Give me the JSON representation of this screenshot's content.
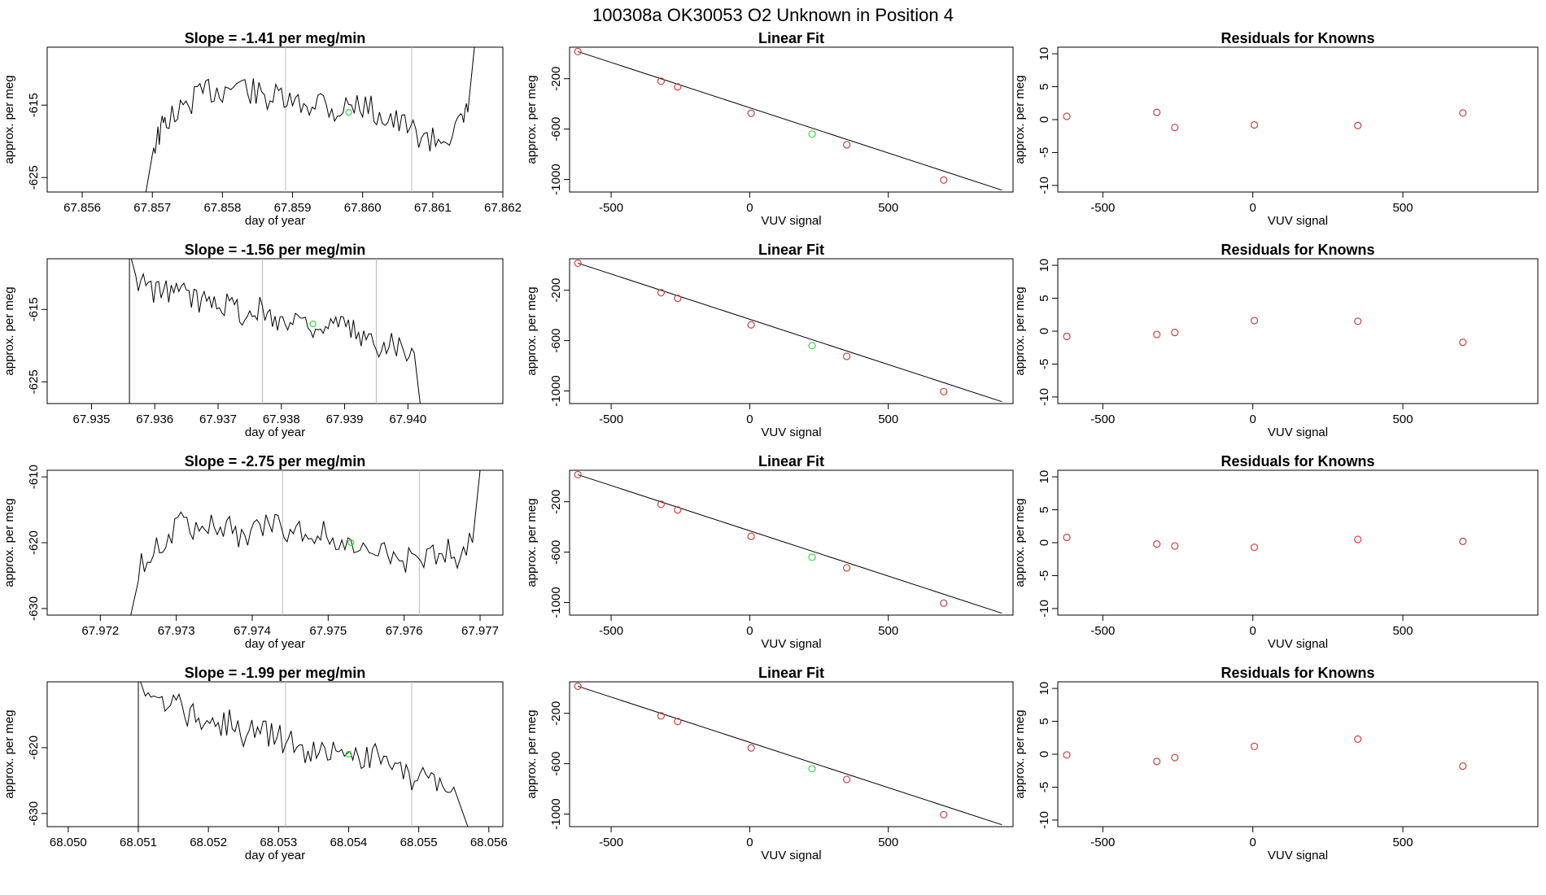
{
  "figure": {
    "main_title": "100308a      OK30053    O2 Unknown in Position  4",
    "axis_color": "#000000",
    "known_color": "#cd4040",
    "unknown_color": "#33dd33",
    "vline_color": "#bbbbbb"
  },
  "chart_data": [
    {
      "type": "line",
      "title": "Slope =  -1.41  per meg/min",
      "xlabel": "day of year",
      "ylabel": "approx. per meg",
      "xlim": [
        67.8555,
        67.862
      ],
      "ylim": [
        -627,
        -607
      ],
      "x_ticks": [
        67.856,
        67.857,
        67.858,
        67.859,
        67.86,
        67.861,
        67.862
      ],
      "x_tick_labels": [
        "67.856",
        "67.857",
        "67.858",
        "67.859",
        "67.860",
        "67.861",
        "67.862"
      ],
      "y_ticks": [
        -615,
        -625
      ],
      "y_tick_labels": [
        "-615",
        "-625"
      ],
      "vlines": [
        67.8589,
        67.8607
      ],
      "start": {
        "x": 67.8569,
        "y": -627.5
      },
      "end": {
        "x": 67.8616,
        "y": -606.5
      },
      "x": [
        67.857,
        67.8571,
        67.8572,
        67.8574,
        67.8576,
        67.8578,
        67.858,
        67.8582,
        67.8584,
        67.8586,
        67.8588,
        67.859,
        67.8592,
        67.8594,
        67.8596,
        67.8598,
        67.86,
        67.8602,
        67.8604,
        67.8606,
        67.8608,
        67.861,
        67.8612,
        67.8614,
        67.8615
      ],
      "y": [
        -621,
        -619,
        -617,
        -616,
        -614,
        -613,
        -613,
        -612,
        -613,
        -614,
        -614,
        -615,
        -615,
        -614,
        -616,
        -615,
        -615,
        -616,
        -617,
        -618,
        -619,
        -620,
        -619,
        -618,
        -616
      ],
      "unknown_point": {
        "x": 67.8598,
        "y": -616
      }
    },
    {
      "type": "scatter",
      "title": "Linear Fit",
      "xlabel": "VUV signal",
      "ylabel": "approx. per meg",
      "xlim": [
        -650,
        950
      ],
      "ylim": [
        -1100,
        50
      ],
      "x_ticks": [
        -500,
        0,
        500
      ],
      "x_tick_labels": [
        "-500",
        "0",
        "500"
      ],
      "y_ticks": [
        -200,
        -600,
        -1000
      ],
      "y_tick_labels": [
        "-200",
        "-600",
        "-1000"
      ],
      "fit_line": {
        "x1": -620,
        "y1": 15,
        "x2": 910,
        "y2": -1085
      },
      "knowns": {
        "x": [
          -620,
          -320,
          -260,
          5,
          350,
          700
        ],
        "y": [
          15,
          -220,
          -265,
          -475,
          -725,
          -1005
        ]
      },
      "unknown": {
        "x": [
          225
        ],
        "y": [
          -640
        ]
      }
    },
    {
      "type": "scatter",
      "title": "Residuals for Knowns",
      "xlabel": "VUV signal",
      "ylabel": "approx. per meg",
      "xlim": [
        -650,
        950
      ],
      "ylim": [
        -11,
        11
      ],
      "x_ticks": [
        -500,
        0,
        500
      ],
      "x_tick_labels": [
        "-500",
        "0",
        "500"
      ],
      "y_ticks": [
        10,
        5,
        0,
        -5,
        -10
      ],
      "y_tick_labels": [
        "10",
        "5",
        "0",
        "-5",
        "-10"
      ],
      "points": {
        "x": [
          -620,
          -320,
          -260,
          5,
          350,
          700
        ],
        "y": [
          0.5,
          1.1,
          -1.2,
          -0.8,
          -0.9,
          1.0
        ]
      }
    },
    {
      "type": "line",
      "title": "Slope =  -1.56  per meg/min",
      "xlabel": "day of year",
      "ylabel": "approx. per meg",
      "xlim": [
        67.9343,
        67.9415
      ],
      "ylim": [
        -628,
        -608
      ],
      "x_ticks": [
        67.935,
        67.936,
        67.937,
        67.938,
        67.939,
        67.94
      ],
      "x_tick_labels": [
        "67.935",
        "67.936",
        "67.937",
        "67.938",
        "67.939",
        "67.940"
      ],
      "y_ticks": [
        -615,
        -625
      ],
      "y_tick_labels": [
        "-615",
        "-625"
      ],
      "vlines": [
        67.9377,
        67.9395
      ],
      "start": {
        "x": 67.9356,
        "y": -607
      },
      "end": {
        "x": 67.9402,
        "y": -628.5
      },
      "x": [
        67.9357,
        67.9359,
        67.9361,
        67.9363,
        67.9365,
        67.9367,
        67.9369,
        67.9371,
        67.9373,
        67.9375,
        67.9377,
        67.9379,
        67.9381,
        67.9383,
        67.9385,
        67.9387,
        67.9389,
        67.9391,
        67.9393,
        67.9395,
        67.9397,
        67.9399,
        67.9401
      ],
      "y": [
        -611,
        -612,
        -613,
        -612,
        -613,
        -614,
        -613,
        -614,
        -615,
        -616,
        -615,
        -616,
        -617,
        -616,
        -617,
        -618,
        -617,
        -618,
        -619,
        -620,
        -619,
        -620,
        -621
      ],
      "unknown_point": {
        "x": 67.9385,
        "y": -617
      }
    },
    {
      "type": "scatter",
      "title": "Linear Fit",
      "xlabel": "VUV signal",
      "ylabel": "approx. per meg",
      "xlim": [
        -650,
        950
      ],
      "ylim": [
        -1100,
        50
      ],
      "x_ticks": [
        -500,
        0,
        500
      ],
      "x_tick_labels": [
        "-500",
        "0",
        "500"
      ],
      "y_ticks": [
        -200,
        -600,
        -1000
      ],
      "y_tick_labels": [
        "-200",
        "-600",
        "-1000"
      ],
      "fit_line": {
        "x1": -620,
        "y1": 15,
        "x2": 910,
        "y2": -1085
      },
      "knowns": {
        "x": [
          -620,
          -320,
          -260,
          5,
          350,
          700
        ],
        "y": [
          15,
          -220,
          -265,
          -475,
          -725,
          -1005
        ]
      },
      "unknown": {
        "x": [
          225
        ],
        "y": [
          -640
        ]
      }
    },
    {
      "type": "scatter",
      "title": "Residuals for Knowns",
      "xlabel": "VUV signal",
      "ylabel": "approx. per meg",
      "xlim": [
        -650,
        950
      ],
      "ylim": [
        -11,
        11
      ],
      "x_ticks": [
        -500,
        0,
        500
      ],
      "x_tick_labels": [
        "-500",
        "0",
        "500"
      ],
      "y_ticks": [
        10,
        5,
        0,
        -5,
        -10
      ],
      "y_tick_labels": [
        "10",
        "5",
        "0",
        "-5",
        "-10"
      ],
      "points": {
        "x": [
          -620,
          -320,
          -260,
          5,
          350,
          700
        ],
        "y": [
          -0.8,
          -0.5,
          -0.2,
          1.6,
          1.5,
          -1.7
        ]
      }
    },
    {
      "type": "line",
      "title": "Slope =  -2.75  per meg/min",
      "xlabel": "day of year",
      "ylabel": "approx. per meg",
      "xlim": [
        67.9713,
        67.9773
      ],
      "ylim": [
        -631,
        -609
      ],
      "x_ticks": [
        67.972,
        67.973,
        67.974,
        67.975,
        67.976,
        67.977
      ],
      "x_tick_labels": [
        "67.972",
        "67.973",
        "67.974",
        "67.975",
        "67.976",
        "67.977"
      ],
      "y_ticks": [
        -610,
        -620,
        -630
      ],
      "y_tick_labels": [
        "-610",
        "-620",
        "-630"
      ],
      "vlines": [
        67.9744,
        67.9762
      ],
      "start": {
        "x": 67.9724,
        "y": -631
      },
      "end": {
        "x": 67.977,
        "y": -609
      },
      "x": [
        67.9725,
        67.9727,
        67.9729,
        67.9731,
        67.9733,
        67.9735,
        67.9737,
        67.9739,
        67.9741,
        67.9743,
        67.9745,
        67.9747,
        67.9749,
        67.9751,
        67.9753,
        67.9755,
        67.9757,
        67.9759,
        67.9761,
        67.9763,
        67.9765,
        67.9767,
        67.9769
      ],
      "y": [
        -624,
        -621,
        -619,
        -617,
        -618,
        -617,
        -618,
        -619,
        -618,
        -617,
        -618,
        -619,
        -618,
        -620,
        -621,
        -622,
        -621,
        -622,
        -623,
        -622,
        -621,
        -622,
        -620
      ],
      "unknown_point": {
        "x": 67.9753,
        "y": -620
      }
    },
    {
      "type": "scatter",
      "title": "Linear Fit",
      "xlabel": "VUV signal",
      "ylabel": "approx. per meg",
      "xlim": [
        -650,
        950
      ],
      "ylim": [
        -1100,
        50
      ],
      "x_ticks": [
        -500,
        0,
        500
      ],
      "x_tick_labels": [
        "-500",
        "0",
        "500"
      ],
      "y_ticks": [
        -200,
        -600,
        -1000
      ],
      "y_tick_labels": [
        "-200",
        "-600",
        "-1000"
      ],
      "fit_line": {
        "x1": -620,
        "y1": 15,
        "x2": 910,
        "y2": -1085
      },
      "knowns": {
        "x": [
          -620,
          -320,
          -260,
          5,
          350,
          700
        ],
        "y": [
          15,
          -220,
          -265,
          -475,
          -725,
          -1005
        ]
      },
      "unknown": {
        "x": [
          225
        ],
        "y": [
          -640
        ]
      }
    },
    {
      "type": "scatter",
      "title": "Residuals for Knowns",
      "xlabel": "VUV signal",
      "ylabel": "approx. per meg",
      "xlim": [
        -650,
        950
      ],
      "ylim": [
        -11,
        11
      ],
      "x_ticks": [
        -500,
        0,
        500
      ],
      "x_tick_labels": [
        "-500",
        "0",
        "500"
      ],
      "y_ticks": [
        10,
        5,
        0,
        -5,
        -10
      ],
      "y_tick_labels": [
        "10",
        "5",
        "0",
        "-5",
        "-10"
      ],
      "points": {
        "x": [
          -620,
          -320,
          -260,
          5,
          350,
          700
        ],
        "y": [
          0.8,
          -0.2,
          -0.5,
          -0.7,
          0.5,
          0.2
        ]
      }
    },
    {
      "type": "line",
      "title": "Slope =  -1.99  per meg/min",
      "xlabel": "day of year",
      "ylabel": "approx. per meg",
      "xlim": [
        68.0497,
        68.0562
      ],
      "ylim": [
        -632,
        -610
      ],
      "x_ticks": [
        68.05,
        68.051,
        68.052,
        68.053,
        68.054,
        68.055,
        68.056
      ],
      "x_tick_labels": [
        "68.050",
        "68.051",
        "68.052",
        "68.053",
        "68.054",
        "68.055",
        "68.056"
      ],
      "y_ticks": [
        -620,
        -630
      ],
      "y_tick_labels": [
        "-620",
        "-630"
      ],
      "vlines": [
        68.0531,
        68.0549
      ],
      "start": {
        "x": 68.051,
        "y": -609
      },
      "end": {
        "x": 68.0557,
        "y": -632
      },
      "x": [
        68.0511,
        68.0513,
        68.0515,
        68.0517,
        68.0519,
        68.0521,
        68.0523,
        68.0525,
        68.0527,
        68.0529,
        68.0531,
        68.0533,
        68.0535,
        68.0537,
        68.0539,
        68.0541,
        68.0543,
        68.0545,
        68.0547,
        68.0549,
        68.0551,
        68.0553,
        68.0555
      ],
      "y": [
        -612,
        -614,
        -613,
        -615,
        -616,
        -617,
        -616,
        -618,
        -617,
        -618,
        -619,
        -620,
        -621,
        -620,
        -621,
        -622,
        -621,
        -622,
        -624,
        -625,
        -624,
        -625,
        -626
      ],
      "unknown_point": {
        "x": 68.054,
        "y": -621
      }
    },
    {
      "type": "scatter",
      "title": "Linear Fit",
      "xlabel": "VUV signal",
      "ylabel": "approx. per meg",
      "xlim": [
        -650,
        950
      ],
      "ylim": [
        -1100,
        50
      ],
      "x_ticks": [
        -500,
        0,
        500
      ],
      "x_tick_labels": [
        "-500",
        "0",
        "500"
      ],
      "y_ticks": [
        -200,
        -600,
        -1000
      ],
      "y_tick_labels": [
        "-200",
        "-600",
        "-1000"
      ],
      "fit_line": {
        "x1": -620,
        "y1": 15,
        "x2": 910,
        "y2": -1085
      },
      "knowns": {
        "x": [
          -620,
          -320,
          -260,
          5,
          350,
          700
        ],
        "y": [
          15,
          -220,
          -265,
          -475,
          -725,
          -1005
        ]
      },
      "unknown": {
        "x": [
          225
        ],
        "y": [
          -640
        ]
      }
    },
    {
      "type": "scatter",
      "title": "Residuals for Knowns",
      "xlabel": "VUV signal",
      "ylabel": "approx. per meg",
      "xlim": [
        -650,
        950
      ],
      "ylim": [
        -11,
        11
      ],
      "x_ticks": [
        -500,
        0,
        500
      ],
      "x_tick_labels": [
        "-500",
        "0",
        "500"
      ],
      "y_ticks": [
        10,
        5,
        0,
        -5,
        -10
      ],
      "y_tick_labels": [
        "10",
        "5",
        "0",
        "-5",
        "-10"
      ],
      "points": {
        "x": [
          -620,
          -320,
          -260,
          5,
          350,
          700
        ],
        "y": [
          -0.1,
          -1.1,
          -0.5,
          1.2,
          2.3,
          -1.8
        ]
      }
    }
  ]
}
